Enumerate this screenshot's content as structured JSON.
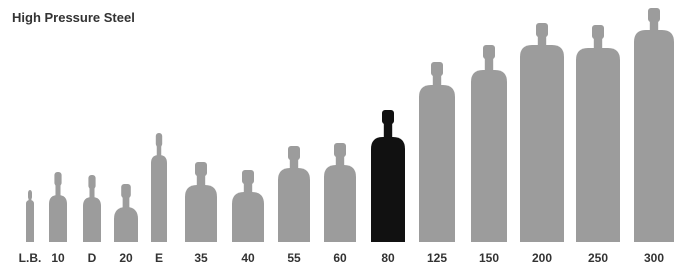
{
  "title": "High Pressure Steel",
  "cylinders": [
    {
      "label": "L.B."
    },
    {
      "label": "10"
    },
    {
      "label": "D"
    },
    {
      "label": "20"
    },
    {
      "label": "E"
    },
    {
      "label": "35"
    },
    {
      "label": "40"
    },
    {
      "label": "55"
    },
    {
      "label": "60"
    },
    {
      "label": "80"
    },
    {
      "label": "125"
    },
    {
      "label": "150"
    },
    {
      "label": "200"
    },
    {
      "label": "250"
    },
    {
      "label": "300"
    }
  ]
}
